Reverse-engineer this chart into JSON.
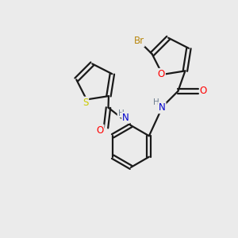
{
  "background_color": "#ebebeb",
  "bond_color": "#1a1a1a",
  "atom_colors": {
    "Br": "#b8860b",
    "O": "#ff0000",
    "N": "#0000cc",
    "S": "#cccc00",
    "H": "#708090",
    "C": "#1a1a1a"
  },
  "figsize": [
    3.0,
    3.0
  ],
  "dpi": 100
}
